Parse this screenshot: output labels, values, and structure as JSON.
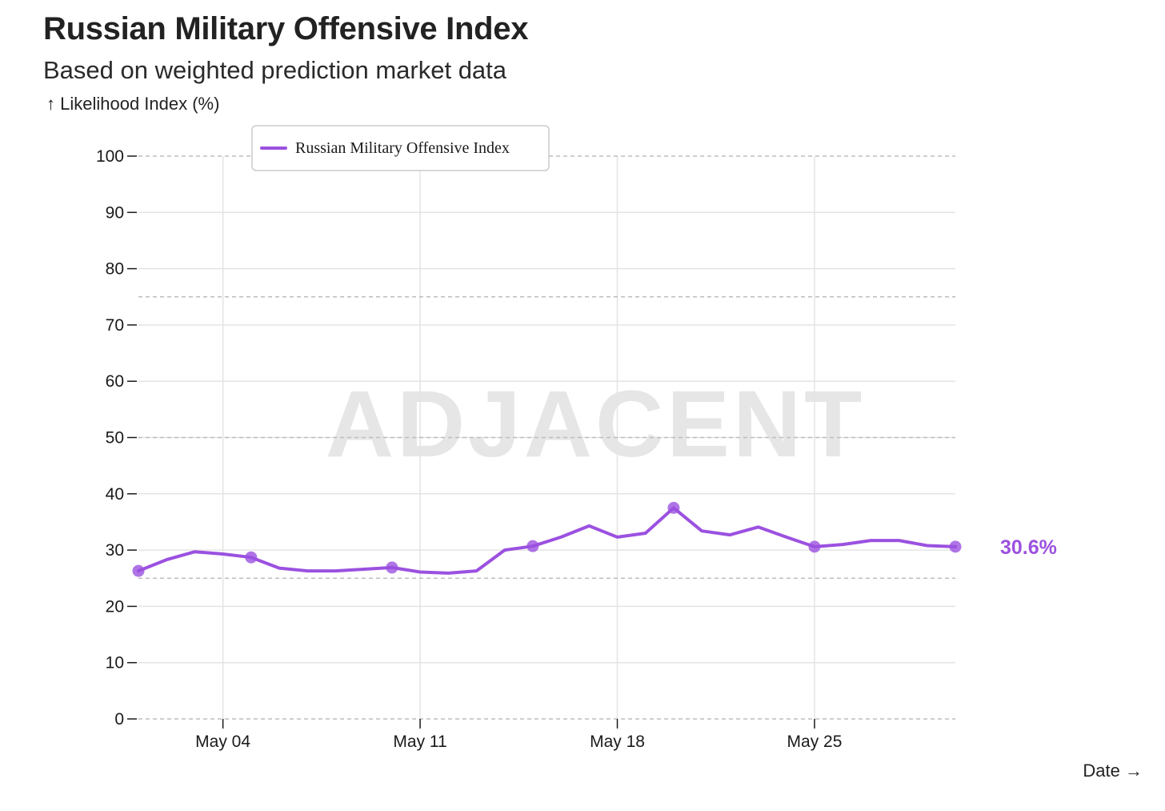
{
  "chart_data": {
    "type": "line",
    "title": "Russian Military Offensive Index",
    "subtitle": "Based on weighted prediction market data",
    "ylabel": "↑ Likelihood Index (%)",
    "xlabel": "Date →",
    "watermark": "ADJACENT",
    "ylim": [
      0,
      100
    ],
    "yticks": [
      0,
      10,
      20,
      30,
      40,
      50,
      60,
      70,
      80,
      90,
      100
    ],
    "dashed_reference_lines": [
      25,
      50,
      75,
      100
    ],
    "x_start": "May 01",
    "x_end": "May 30",
    "xticks": [
      {
        "day": 4,
        "label": "May 04"
      },
      {
        "day": 11,
        "label": "May 11"
      },
      {
        "day": 18,
        "label": "May 18"
      },
      {
        "day": 25,
        "label": "May 25"
      }
    ],
    "grid": true,
    "legend": {
      "placement": "top-left",
      "entries": [
        "Russian Military Offensive Index"
      ]
    },
    "series": [
      {
        "name": "Russian Military Offensive Index",
        "color": "#9b51e0",
        "points": [
          {
            "day": 1,
            "value": 26.3,
            "marker": true
          },
          {
            "day": 2,
            "value": 28.3
          },
          {
            "day": 3,
            "value": 29.7
          },
          {
            "day": 4,
            "value": 29.3
          },
          {
            "day": 5,
            "value": 28.7,
            "marker": true
          },
          {
            "day": 6,
            "value": 26.8
          },
          {
            "day": 7,
            "value": 26.3
          },
          {
            "day": 8,
            "value": 26.3
          },
          {
            "day": 9,
            "value": 26.6
          },
          {
            "day": 10,
            "value": 26.9,
            "marker": true
          },
          {
            "day": 11,
            "value": 26.1
          },
          {
            "day": 12,
            "value": 25.9
          },
          {
            "day": 13,
            "value": 26.3
          },
          {
            "day": 14,
            "value": 30.0
          },
          {
            "day": 15,
            "value": 30.7,
            "marker": true
          },
          {
            "day": 16,
            "value": 32.3
          },
          {
            "day": 17,
            "value": 34.3
          },
          {
            "day": 18,
            "value": 32.3
          },
          {
            "day": 19,
            "value": 33.0
          },
          {
            "day": 20,
            "value": 37.5,
            "marker": true
          },
          {
            "day": 21,
            "value": 33.4
          },
          {
            "day": 22,
            "value": 32.7
          },
          {
            "day": 23,
            "value": 34.1
          },
          {
            "day": 24,
            "value": 32.3
          },
          {
            "day": 25,
            "value": 30.6,
            "marker": true
          },
          {
            "day": 26,
            "value": 31.0
          },
          {
            "day": 27,
            "value": 31.7
          },
          {
            "day": 28,
            "value": 31.7
          },
          {
            "day": 29,
            "value": 30.8
          },
          {
            "day": 30,
            "value": 30.6,
            "marker": true
          }
        ],
        "end_label": "30.6%"
      }
    ]
  }
}
